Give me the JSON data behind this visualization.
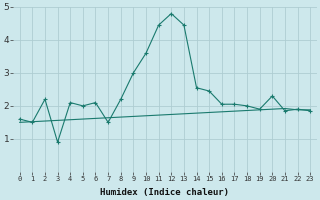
{
  "xlabel": "Humidex (Indice chaleur)",
  "x": [
    0,
    1,
    2,
    3,
    4,
    5,
    6,
    7,
    8,
    9,
    10,
    11,
    12,
    13,
    14,
    15,
    16,
    17,
    18,
    19,
    20,
    21,
    22,
    23
  ],
  "line1_y": [
    1.6,
    1.5,
    2.2,
    0.9,
    2.1,
    2.0,
    2.1,
    1.5,
    2.2,
    3.0,
    3.6,
    4.45,
    4.8,
    4.45,
    2.55,
    2.45,
    2.05,
    2.05,
    2.0,
    1.9,
    2.3,
    1.85,
    1.9,
    1.85
  ],
  "line2_y": [
    1.5,
    1.52,
    1.54,
    1.56,
    1.58,
    1.6,
    1.62,
    1.64,
    1.66,
    1.68,
    1.7,
    1.72,
    1.74,
    1.76,
    1.78,
    1.8,
    1.82,
    1.84,
    1.86,
    1.88,
    1.9,
    1.92,
    1.88,
    1.88
  ],
  "line_color": "#1a7a6e",
  "bg_color": "#cde8ec",
  "grid_color": "#aecdd2",
  "ylim": [
    0,
    5
  ],
  "yticks": [
    1,
    2,
    3,
    4,
    5
  ],
  "xtick_labels": [
    "0",
    "1",
    "2",
    "3",
    "4",
    "5",
    "6",
    "7",
    "8",
    "9",
    "10",
    "11",
    "12",
    "13",
    "14",
    "15",
    "16",
    "17",
    "18",
    "19",
    "20",
    "21",
    "22",
    "23"
  ]
}
